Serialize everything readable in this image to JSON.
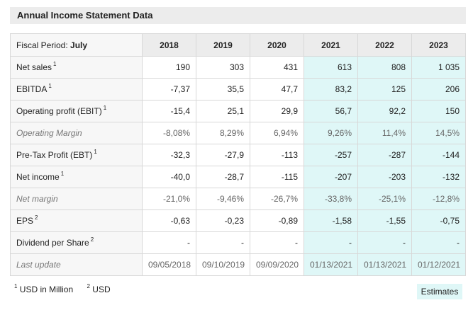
{
  "title": "Annual Income Statement Data",
  "fiscal_label": "Fiscal Period:",
  "fiscal_value": "July",
  "years": [
    "2018",
    "2019",
    "2020",
    "2021",
    "2022",
    "2023"
  ],
  "estimate_columns": [
    3,
    4,
    5
  ],
  "rows": [
    {
      "label": "Net sales",
      "note": "1",
      "muted": false,
      "center": false,
      "values": [
        "190",
        "303",
        "431",
        "613",
        "808",
        "1 035"
      ]
    },
    {
      "label": "EBITDA",
      "note": "1",
      "muted": false,
      "center": false,
      "values": [
        "-7,37",
        "35,5",
        "47,7",
        "83,2",
        "125",
        "206"
      ]
    },
    {
      "label": "Operating profit (EBIT)",
      "note": "1",
      "muted": false,
      "center": false,
      "values": [
        "-15,4",
        "25,1",
        "29,9",
        "56,7",
        "92,2",
        "150"
      ]
    },
    {
      "label": "Operating Margin",
      "note": "",
      "muted": true,
      "center": false,
      "values": [
        "-8,08%",
        "8,29%",
        "6,94%",
        "9,26%",
        "11,4%",
        "14,5%"
      ]
    },
    {
      "label": "Pre-Tax Profit (EBT)",
      "note": "1",
      "muted": false,
      "center": false,
      "values": [
        "-32,3",
        "-27,9",
        "-113",
        "-257",
        "-287",
        "-144"
      ]
    },
    {
      "label": "Net income",
      "note": "1",
      "muted": false,
      "center": false,
      "values": [
        "-40,0",
        "-28,7",
        "-115",
        "-207",
        "-203",
        "-132"
      ]
    },
    {
      "label": "Net margin",
      "note": "",
      "muted": true,
      "center": false,
      "values": [
        "-21,0%",
        "-9,46%",
        "-26,7%",
        "-33,8%",
        "-25,1%",
        "-12,8%"
      ]
    },
    {
      "label": "EPS",
      "note": "2",
      "muted": false,
      "center": false,
      "values": [
        "-0,63",
        "-0,23",
        "-0,89",
        "-1,58",
        "-1,55",
        "-0,75"
      ]
    },
    {
      "label": "Dividend per Share",
      "note": "2",
      "muted": false,
      "center": false,
      "values": [
        "-",
        "-",
        "-",
        "-",
        "-",
        "-"
      ]
    },
    {
      "label": "Last update",
      "note": "",
      "muted": true,
      "center": true,
      "values": [
        "09/05/2018",
        "09/10/2019",
        "09/09/2020",
        "01/13/2021",
        "01/13/2021",
        "01/12/2021"
      ]
    }
  ],
  "footnotes": [
    {
      "mark": "1",
      "text": "USD in Million"
    },
    {
      "mark": "2",
      "text": "USD"
    }
  ],
  "estimates_label": "Estimates",
  "colors": {
    "estimate_bg": "#dff7f7",
    "header_bg": "#ececec"
  }
}
